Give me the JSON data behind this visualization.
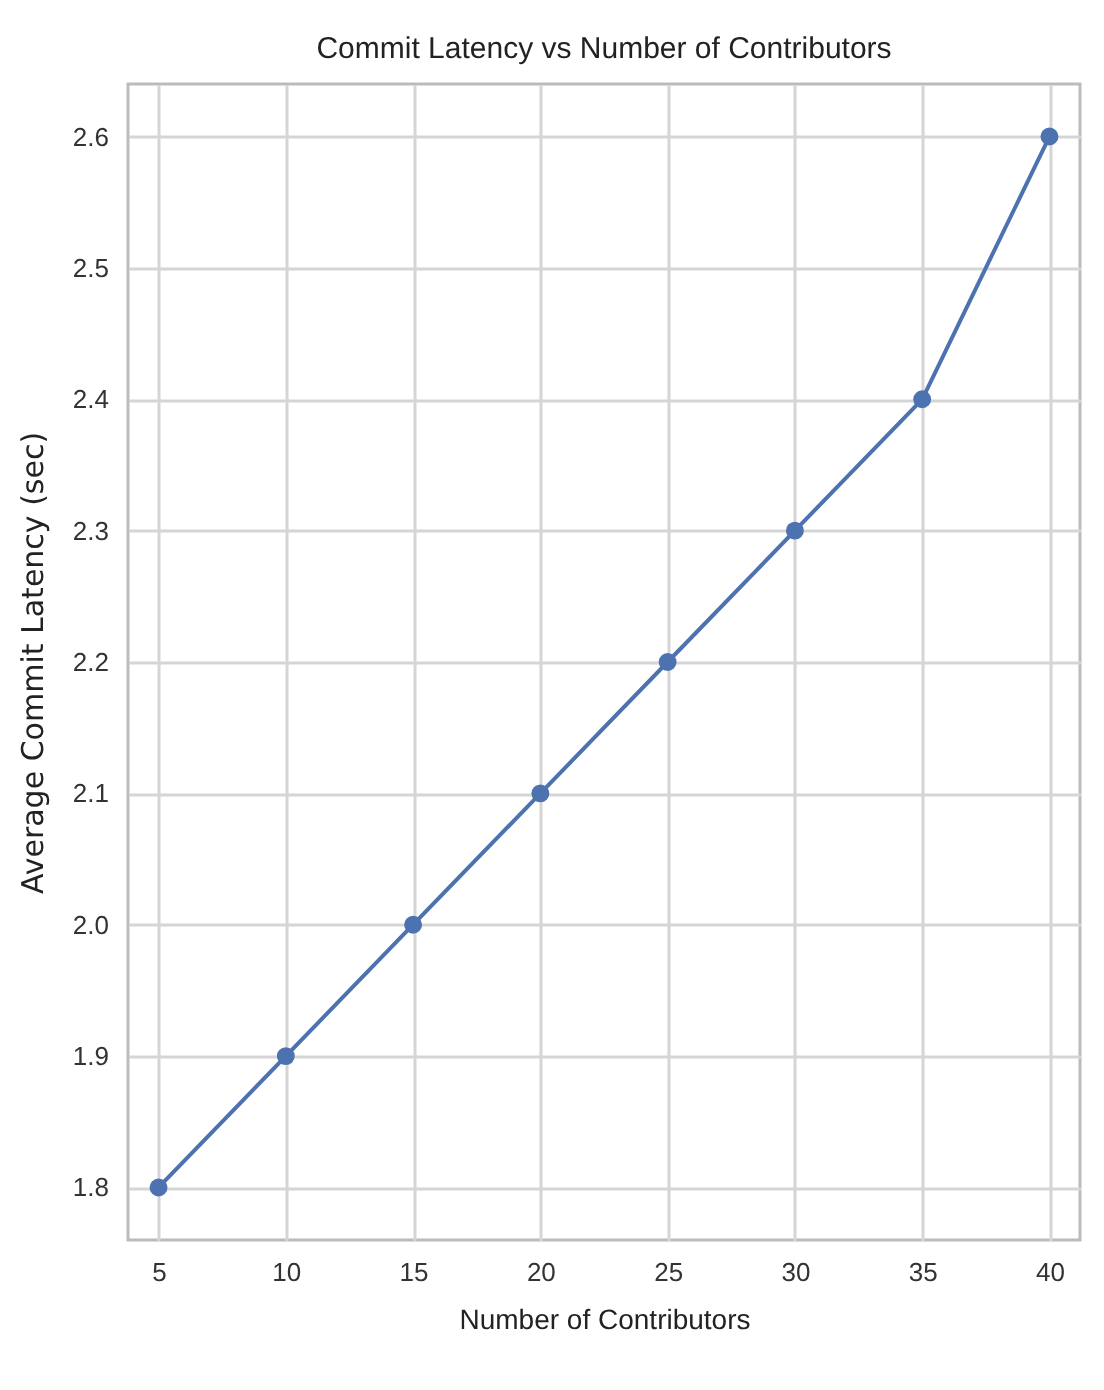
{
  "chart_data": {
    "type": "line",
    "title": "Commit Latency vs Number of Contributors",
    "xlabel": "Number of Contributors",
    "ylabel": "Average Commit Latency (sec)",
    "x": [
      5,
      10,
      15,
      20,
      25,
      30,
      35,
      40
    ],
    "series": [
      {
        "color": "#4c72b0",
        "values": [
          1.8,
          1.9,
          2.0,
          2.1,
          2.2,
          2.3,
          2.4,
          2.6
        ]
      }
    ],
    "xlim": [
      3.8,
      41.2
    ],
    "xticks": [
      5,
      10,
      15,
      20,
      25,
      30,
      35,
      40
    ],
    "ylim": [
      1.76,
      2.64
    ],
    "yticks": [
      {
        "value": 1.8,
        "label": "1.8"
      },
      {
        "value": 1.9,
        "label": "1.9"
      },
      {
        "value": 2.0,
        "label": "2.0"
      },
      {
        "value": 2.1,
        "label": "2.1"
      },
      {
        "value": 2.2,
        "label": "2.2"
      },
      {
        "value": 2.3,
        "label": "2.3"
      },
      {
        "value": 2.4,
        "label": "2.4"
      },
      {
        "value": 2.5,
        "label": "2.5"
      },
      {
        "value": 2.6,
        "label": "2.6"
      }
    ],
    "grid": true,
    "marker": "circle",
    "line_style": "solid"
  }
}
